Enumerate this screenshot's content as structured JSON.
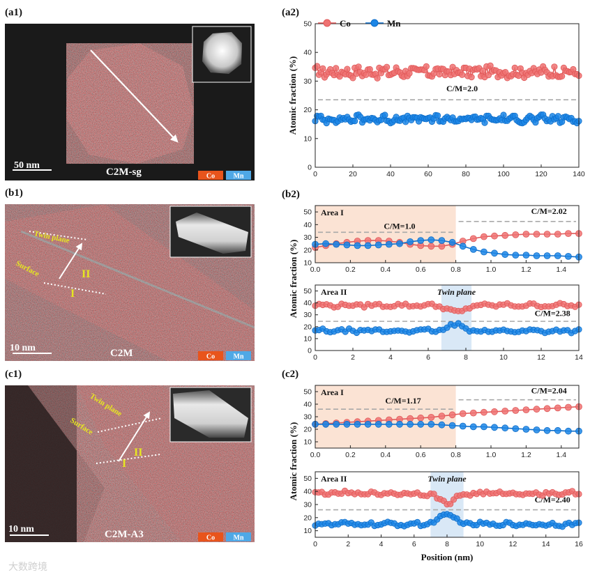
{
  "colors": {
    "co": "#ef7272",
    "co_dark": "#e05858",
    "mn": "#1c86e6",
    "mn_dark": "#0d6dc9",
    "ref": "#a9a9a9",
    "area1": "#fbe3d4",
    "twin": "#d9e8f6",
    "badge_co": "#e8541c",
    "badge_mn": "#4fa8e6"
  },
  "images": {
    "a1": {
      "panel_label": "(a1)",
      "scale": "50 nm",
      "sample": "C2M-sg",
      "badge_co": "Co",
      "badge_mn": "Mn"
    },
    "b1": {
      "panel_label": "(b1)",
      "scale": "10 nm",
      "sample": "C2M",
      "badge_co": "Co",
      "badge_mn": "Mn",
      "twin": "Twin plane",
      "surface": "Surface",
      "region_1": "I",
      "region_2": "II"
    },
    "c1": {
      "panel_label": "(c1)",
      "scale": "10 nm",
      "sample": "C2M-A3",
      "badge_co": "Co",
      "badge_mn": "Mn",
      "twin": "Twin plane",
      "surface": "Surface",
      "region_1": "I",
      "region_2": "II"
    }
  },
  "watermark": "大数跨境",
  "chart_data": [
    {
      "id": "a2",
      "type": "line",
      "panel_label": "(a2)",
      "legend": [
        "Co",
        "Mn"
      ],
      "ylabel": "Atomic fraction (%)",
      "xlabel": "",
      "xlim": [
        0,
        140
      ],
      "ylim": [
        0,
        50
      ],
      "xticks": [
        0,
        20,
        40,
        60,
        80,
        100,
        120,
        140
      ],
      "yticks": [
        0,
        10,
        20,
        30,
        40,
        50
      ],
      "x": {
        "start": 0,
        "end": 140,
        "n": 140
      },
      "series": [
        {
          "name": "Co",
          "mean": 33.2,
          "amp": 1.8,
          "values_range": [
            30,
            36
          ]
        },
        {
          "name": "Mn",
          "mean": 16.8,
          "amp": 1.1,
          "values_range": [
            14,
            19
          ]
        }
      ],
      "reference": {
        "y": 23.5,
        "label": "C/M=2.0",
        "label_x": 78
      }
    },
    {
      "id": "b2_area1",
      "type": "line",
      "panel_label": "(b2)",
      "ylabel": "Atomic fraction (%)",
      "region_label": "Area I",
      "xlim": [
        0,
        1.5
      ],
      "ylim": [
        10,
        55
      ],
      "xticks": [
        0.0,
        0.2,
        0.4,
        0.6,
        0.8,
        1.0,
        1.2,
        1.4
      ],
      "yticks": [
        10,
        20,
        30,
        40,
        50
      ],
      "xtick_labels": [
        "0.0",
        "0.2",
        "0.4",
        "0.6",
        "0.8",
        "1.0",
        "1.2",
        "1.4"
      ],
      "shade": [
        0,
        0.8
      ],
      "x": [
        0.0,
        0.06,
        0.12,
        0.18,
        0.24,
        0.3,
        0.36,
        0.42,
        0.48,
        0.54,
        0.6,
        0.66,
        0.72,
        0.78,
        0.84,
        0.9,
        0.96,
        1.02,
        1.08,
        1.14,
        1.2,
        1.26,
        1.32,
        1.38,
        1.44,
        1.5
      ],
      "series": [
        {
          "name": "Co",
          "values": [
            22,
            23.5,
            25,
            26,
            27,
            27.5,
            27.5,
            27,
            26,
            24.5,
            23.5,
            23,
            23,
            24.5,
            27,
            29,
            30.5,
            31,
            31.5,
            32,
            32.5,
            32.5,
            32.5,
            32.5,
            33,
            33
          ]
        },
        {
          "name": "Mn",
          "values": [
            24.5,
            25,
            24.5,
            24,
            23.5,
            23.5,
            24,
            24.5,
            25,
            26.5,
            27.5,
            28,
            27.5,
            26,
            23,
            20.5,
            18.5,
            17.5,
            16.5,
            16,
            16,
            15.5,
            15.5,
            15.5,
            15,
            14.5
          ]
        }
      ],
      "references": [
        {
          "y": 34,
          "x_range": [
            0,
            0.8
          ],
          "label": "C/M=1.0",
          "label_x": 0.48
        },
        {
          "y": 42.5,
          "x_range": [
            0.8,
            1.5
          ],
          "label": "C/M=2.02",
          "label_x": 1.33,
          "label_y": 48.5
        }
      ]
    },
    {
      "id": "b2_area2",
      "type": "line",
      "region_label": "Area II",
      "shade_label": "Twin plane",
      "xlabel": "",
      "xlim": [
        0,
        14
      ],
      "ylim": [
        0,
        55
      ],
      "xticks": [
        0,
        2,
        4,
        6,
        8,
        10,
        12,
        14
      ],
      "yticks": [
        0,
        10,
        20,
        30,
        40,
        50
      ],
      "shade": [
        6.7,
        8.3
      ],
      "x": {
        "start": 0,
        "end": 14,
        "n": 70
      },
      "series": [
        {
          "name": "Co",
          "mean": 38,
          "dip": {
            "center": 7.5,
            "width": 0.6,
            "depth": -6
          }
        },
        {
          "name": "Mn",
          "mean": 16.5,
          "dip": {
            "center": 7.5,
            "width": 0.6,
            "depth": 5
          }
        }
      ],
      "references": [
        {
          "y": 24.5,
          "x_range": [
            0,
            14
          ],
          "label": "C/M=2.38",
          "label_x": 12.6,
          "label_y": 29
        }
      ]
    },
    {
      "id": "c2_area1",
      "type": "line",
      "panel_label": "(c2)",
      "region_label": "Area I",
      "xlim": [
        0,
        1.5
      ],
      "ylim": [
        5,
        55
      ],
      "xticks": [
        0.0,
        0.2,
        0.4,
        0.6,
        0.8,
        1.0,
        1.2,
        1.4
      ],
      "yticks": [
        10,
        20,
        30,
        40,
        50
      ],
      "xtick_labels": [
        "0.0",
        "0.2",
        "0.4",
        "0.6",
        "0.8",
        "1.0",
        "1.2",
        "1.4"
      ],
      "shade": [
        0,
        0.8
      ],
      "x": [
        0.0,
        0.06,
        0.12,
        0.18,
        0.24,
        0.3,
        0.36,
        0.42,
        0.48,
        0.54,
        0.6,
        0.66,
        0.72,
        0.78,
        0.84,
        0.9,
        0.96,
        1.02,
        1.08,
        1.14,
        1.2,
        1.26,
        1.32,
        1.38,
        1.44,
        1.5
      ],
      "series": [
        {
          "name": "Co",
          "values": [
            24,
            24.5,
            25,
            25.5,
            26,
            26.5,
            27,
            27.5,
            28,
            28.5,
            29,
            29.5,
            30.5,
            31.5,
            32.5,
            33,
            33.5,
            34,
            34.5,
            35,
            35.5,
            36,
            36.5,
            37,
            37.5,
            38
          ]
        },
        {
          "name": "Mn",
          "values": [
            24,
            24,
            24,
            24,
            24,
            24,
            24,
            24,
            24,
            24,
            24,
            24,
            23.5,
            23,
            22.5,
            22,
            22,
            21.5,
            21,
            20.5,
            20,
            19.5,
            19,
            19,
            18.5,
            18.5
          ]
        }
      ],
      "references": [
        {
          "y": 36,
          "x_range": [
            0,
            0.8
          ],
          "label": "C/M=1.17",
          "label_x": 0.5,
          "label_y": 40.5
        },
        {
          "y": 43.5,
          "x_range": [
            0.8,
            1.5
          ],
          "label": "C/M=2.04",
          "label_x": 1.33,
          "label_y": 48.5
        }
      ]
    },
    {
      "id": "c2_area2",
      "type": "line",
      "region_label": "Area II",
      "shade_label": "Twin plane",
      "xlabel": "Position (nm)",
      "xlim": [
        0,
        16
      ],
      "ylim": [
        5,
        55
      ],
      "xticks": [
        0,
        2,
        4,
        6,
        8,
        10,
        12,
        14,
        16
      ],
      "yticks": [
        10,
        20,
        30,
        40,
        50
      ],
      "shade": [
        7.0,
        9.0
      ],
      "x": {
        "start": 0,
        "end": 16,
        "n": 80
      },
      "series": [
        {
          "name": "Co",
          "mean": 38.5,
          "dip": {
            "center": 8.0,
            "width": 0.7,
            "depth": -7
          }
        },
        {
          "name": "Mn",
          "mean": 15,
          "dip": {
            "center": 8.0,
            "width": 0.7,
            "depth": 7
          }
        }
      ],
      "references": [
        {
          "y": 26,
          "x_range": [
            0,
            16
          ],
          "label": "C/M=2.40",
          "label_x": 14.4,
          "label_y": 31.5
        }
      ]
    }
  ],
  "shared_ylabel": "Atomic fraction (%)"
}
